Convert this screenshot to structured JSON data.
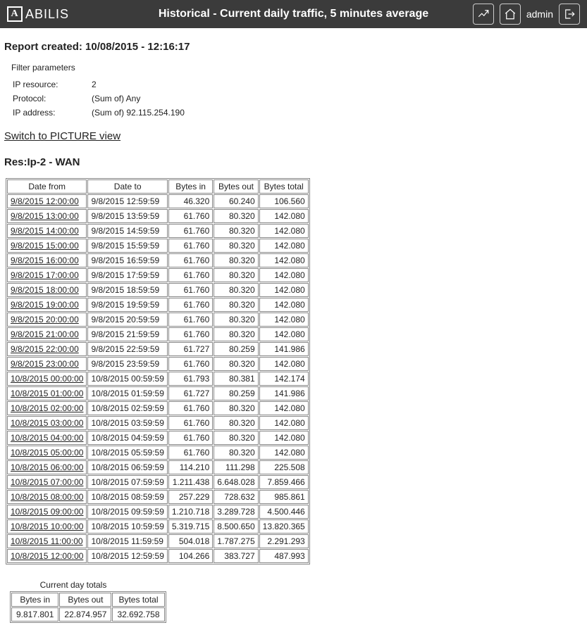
{
  "header": {
    "brand": "ABILIS",
    "title": "Historical - Current daily traffic, 5 minutes average",
    "username": "admin"
  },
  "report": {
    "created_label": "Report created:",
    "created_value": "10/08/2015 - 12:16:17"
  },
  "filters": {
    "title": "Filter parameters",
    "rows": [
      {
        "label": "IP resource:",
        "value": "2"
      },
      {
        "label": "Protocol:",
        "value": "(Sum of) Any"
      },
      {
        "label": "IP address:",
        "value": "(Sum of) 92.115.254.190"
      }
    ]
  },
  "switch_link": "Switch to PICTURE view",
  "section_title": "Res:Ip-2 - WAN",
  "table": {
    "headers": [
      "Date from",
      "Date to",
      "Bytes in",
      "Bytes out",
      "Bytes total"
    ],
    "rows": [
      [
        "9/8/2015 12:00:00",
        "9/8/2015 12:59:59",
        "46.320",
        "60.240",
        "106.560"
      ],
      [
        "9/8/2015 13:00:00",
        "9/8/2015 13:59:59",
        "61.760",
        "80.320",
        "142.080"
      ],
      [
        "9/8/2015 14:00:00",
        "9/8/2015 14:59:59",
        "61.760",
        "80.320",
        "142.080"
      ],
      [
        "9/8/2015 15:00:00",
        "9/8/2015 15:59:59",
        "61.760",
        "80.320",
        "142.080"
      ],
      [
        "9/8/2015 16:00:00",
        "9/8/2015 16:59:59",
        "61.760",
        "80.320",
        "142.080"
      ],
      [
        "9/8/2015 17:00:00",
        "9/8/2015 17:59:59",
        "61.760",
        "80.320",
        "142.080"
      ],
      [
        "9/8/2015 18:00:00",
        "9/8/2015 18:59:59",
        "61.760",
        "80.320",
        "142.080"
      ],
      [
        "9/8/2015 19:00:00",
        "9/8/2015 19:59:59",
        "61.760",
        "80.320",
        "142.080"
      ],
      [
        "9/8/2015 20:00:00",
        "9/8/2015 20:59:59",
        "61.760",
        "80.320",
        "142.080"
      ],
      [
        "9/8/2015 21:00:00",
        "9/8/2015 21:59:59",
        "61.760",
        "80.320",
        "142.080"
      ],
      [
        "9/8/2015 22:00:00",
        "9/8/2015 22:59:59",
        "61.727",
        "80.259",
        "141.986"
      ],
      [
        "9/8/2015 23:00:00",
        "9/8/2015 23:59:59",
        "61.760",
        "80.320",
        "142.080"
      ],
      [
        "10/8/2015 00:00:00",
        "10/8/2015 00:59:59",
        "61.793",
        "80.381",
        "142.174"
      ],
      [
        "10/8/2015 01:00:00",
        "10/8/2015 01:59:59",
        "61.727",
        "80.259",
        "141.986"
      ],
      [
        "10/8/2015 02:00:00",
        "10/8/2015 02:59:59",
        "61.760",
        "80.320",
        "142.080"
      ],
      [
        "10/8/2015 03:00:00",
        "10/8/2015 03:59:59",
        "61.760",
        "80.320",
        "142.080"
      ],
      [
        "10/8/2015 04:00:00",
        "10/8/2015 04:59:59",
        "61.760",
        "80.320",
        "142.080"
      ],
      [
        "10/8/2015 05:00:00",
        "10/8/2015 05:59:59",
        "61.760",
        "80.320",
        "142.080"
      ],
      [
        "10/8/2015 06:00:00",
        "10/8/2015 06:59:59",
        "114.210",
        "111.298",
        "225.508"
      ],
      [
        "10/8/2015 07:00:00",
        "10/8/2015 07:59:59",
        "1.211.438",
        "6.648.028",
        "7.859.466"
      ],
      [
        "10/8/2015 08:00:00",
        "10/8/2015 08:59:59",
        "257.229",
        "728.632",
        "985.861"
      ],
      [
        "10/8/2015 09:00:00",
        "10/8/2015 09:59:59",
        "1.210.718",
        "3.289.728",
        "4.500.446"
      ],
      [
        "10/8/2015 10:00:00",
        "10/8/2015 10:59:59",
        "5.319.715",
        "8.500.650",
        "13.820.365"
      ],
      [
        "10/8/2015 11:00:00",
        "10/8/2015 11:59:59",
        "504.018",
        "1.787.275",
        "2.291.293"
      ],
      [
        "10/8/2015 12:00:00",
        "10/8/2015 12:59:59",
        "104.266",
        "383.727",
        "487.993"
      ]
    ]
  },
  "totals": {
    "caption": "Current day totals",
    "headers": [
      "Bytes in",
      "Bytes out",
      "Bytes total"
    ],
    "values": [
      "9.817.801",
      "22.874.957",
      "32.692.758"
    ]
  }
}
